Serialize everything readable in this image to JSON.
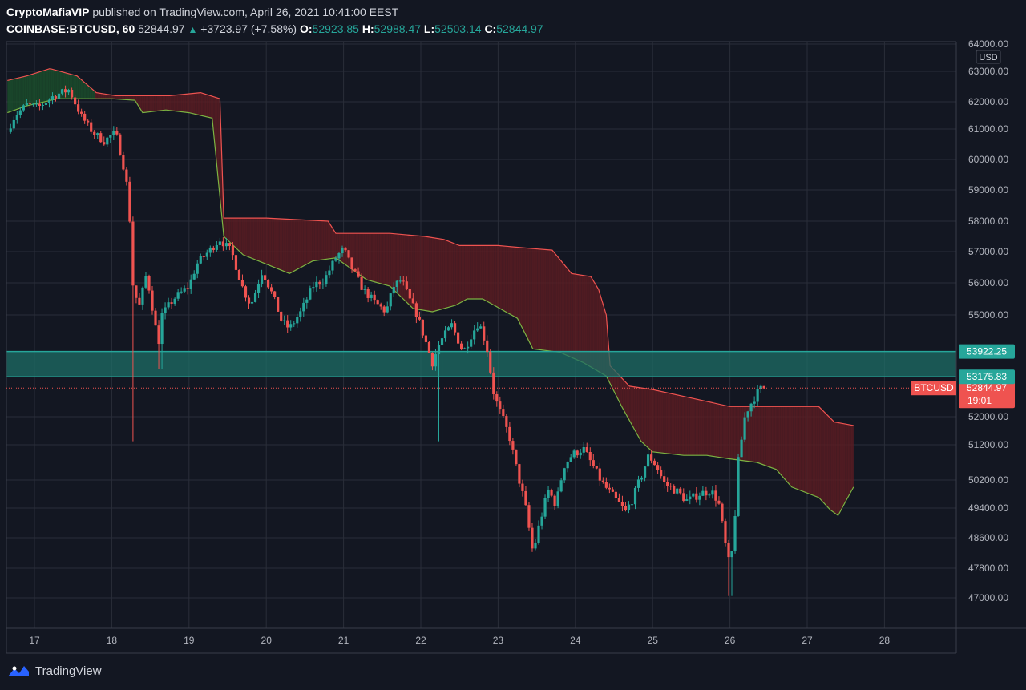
{
  "header": {
    "publisher": "CryptoMafiaVIP",
    "published_text": "published on TradingView.com, April 26, 2021 10:41:00 EEST",
    "symbol": "COINBASE:BTCUSD, 60",
    "last": "52844.97",
    "change": "+3723.97 (+7.58%)",
    "o_label": "O:",
    "o_value": "52923.85",
    "h_label": "H:",
    "h_value": "52988.47",
    "l_label": "L:",
    "l_value": "52503.14",
    "c_label": "C:",
    "c_value": "52844.97"
  },
  "footer": {
    "brand": "TradingView"
  },
  "colors": {
    "background": "#131722",
    "grid": "#2a2e39",
    "up": "#26a69a",
    "down": "#ef5350",
    "zone": "#1e6e66",
    "zone_label": "#26a69a",
    "cloud_red": "#5a1c22",
    "cloud_green": "#1b4d2b"
  },
  "chart_data": {
    "type": "candlestick",
    "currency": "USD",
    "x_ticks": [
      "17",
      "18",
      "19",
      "20",
      "21",
      "22",
      "23",
      "24",
      "25",
      "26",
      "27",
      "28"
    ],
    "y_ticks": [
      "47000.00",
      "47800.00",
      "48600.00",
      "49400.00",
      "50200.00",
      "51200.00",
      "52000.00",
      "55000.00",
      "56000.00",
      "57000.00",
      "58000.00",
      "59000.00",
      "60000.00",
      "61000.00",
      "62000.00",
      "63000.00",
      "64000.00"
    ],
    "y_tick_values": [
      47000,
      47800,
      48600,
      49400,
      50200,
      51200,
      52000,
      55000,
      56000,
      57000,
      58000,
      59000,
      60000,
      61000,
      62000,
      63000,
      64000
    ],
    "ylim": [
      46700,
      64100
    ],
    "xlim": [
      16.65,
      28.95
    ],
    "zone": {
      "low": 53175.83,
      "high": 53922.25,
      "low_label": "53175.83",
      "high_label": "53922.25"
    },
    "last_price": {
      "symbol": "BTCUSD",
      "value": 52844.97,
      "label": "52844.97",
      "countdown": "19:01"
    },
    "price_path": [
      [
        16.65,
        60900
      ],
      [
        16.75,
        61500
      ],
      [
        16.9,
        61900
      ],
      [
        17.05,
        61800
      ],
      [
        17.25,
        62200
      ],
      [
        17.45,
        62400
      ],
      [
        17.6,
        61500
      ],
      [
        17.75,
        60900
      ],
      [
        17.9,
        60600
      ],
      [
        18.05,
        60900
      ],
      [
        18.15,
        59800
      ],
      [
        18.22,
        58800
      ],
      [
        18.27,
        56000
      ],
      [
        18.35,
        55200
      ],
      [
        18.45,
        56300
      ],
      [
        18.55,
        54900
      ],
      [
        18.6,
        54100
      ],
      [
        18.65,
        55000
      ],
      [
        18.8,
        55500
      ],
      [
        19.0,
        55900
      ],
      [
        19.1,
        56600
      ],
      [
        19.25,
        57000
      ],
      [
        19.4,
        57400
      ],
      [
        19.55,
        57000
      ],
      [
        19.7,
        55800
      ],
      [
        19.8,
        55300
      ],
      [
        19.95,
        56400
      ],
      [
        20.1,
        55500
      ],
      [
        20.2,
        54800
      ],
      [
        20.3,
        54600
      ],
      [
        20.45,
        55100
      ],
      [
        20.6,
        55900
      ],
      [
        20.75,
        56100
      ],
      [
        20.9,
        56800
      ],
      [
        21.0,
        57100
      ],
      [
        21.1,
        56500
      ],
      [
        21.25,
        55800
      ],
      [
        21.4,
        55400
      ],
      [
        21.55,
        55100
      ],
      [
        21.65,
        55900
      ],
      [
        21.75,
        56100
      ],
      [
        21.85,
        55500
      ],
      [
        21.95,
        55000
      ],
      [
        22.05,
        54300
      ],
      [
        22.15,
        53600
      ],
      [
        22.25,
        54200
      ],
      [
        22.4,
        54700
      ],
      [
        22.55,
        53900
      ],
      [
        22.65,
        54400
      ],
      [
        22.75,
        54800
      ],
      [
        22.85,
        54100
      ],
      [
        22.95,
        52600
      ],
      [
        23.05,
        52000
      ],
      [
        23.15,
        51400
      ],
      [
        23.25,
        50400
      ],
      [
        23.35,
        49500
      ],
      [
        23.45,
        48200
      ],
      [
        23.55,
        49100
      ],
      [
        23.65,
        49900
      ],
      [
        23.75,
        49500
      ],
      [
        23.85,
        50600
      ],
      [
        23.95,
        50900
      ],
      [
        24.1,
        51100
      ],
      [
        24.2,
        50700
      ],
      [
        24.35,
        50100
      ],
      [
        24.5,
        49700
      ],
      [
        24.65,
        49300
      ],
      [
        24.75,
        49700
      ],
      [
        24.85,
        50300
      ],
      [
        24.95,
        50900
      ],
      [
        25.05,
        50600
      ],
      [
        25.15,
        50100
      ],
      [
        25.3,
        49900
      ],
      [
        25.45,
        49600
      ],
      [
        25.6,
        49800
      ],
      [
        25.75,
        49900
      ],
      [
        25.85,
        49600
      ],
      [
        25.95,
        48300
      ],
      [
        26.0,
        47800
      ],
      [
        26.05,
        48600
      ],
      [
        26.1,
        50600
      ],
      [
        26.2,
        52100
      ],
      [
        26.3,
        52500
      ],
      [
        26.38,
        52800
      ],
      [
        26.44,
        52845
      ]
    ],
    "cloud_upper": [
      [
        16.65,
        62700
      ],
      [
        16.9,
        62850
      ],
      [
        17.2,
        63100
      ],
      [
        17.55,
        62850
      ],
      [
        17.8,
        62300
      ],
      [
        18.05,
        62200
      ],
      [
        18.3,
        62200
      ],
      [
        18.75,
        62200
      ],
      [
        19.15,
        62300
      ],
      [
        19.4,
        62100
      ],
      [
        19.45,
        58100
      ],
      [
        20.0,
        58100
      ],
      [
        20.8,
        58000
      ],
      [
        20.9,
        57600
      ],
      [
        21.6,
        57600
      ],
      [
        22.05,
        57500
      ],
      [
        22.3,
        57400
      ],
      [
        22.5,
        57200
      ],
      [
        23.0,
        57200
      ],
      [
        23.45,
        57100
      ],
      [
        23.7,
        57050
      ],
      [
        23.95,
        56300
      ],
      [
        24.2,
        56200
      ],
      [
        24.3,
        55800
      ],
      [
        24.4,
        55000
      ],
      [
        24.45,
        53500
      ],
      [
        24.7,
        52900
      ],
      [
        25.0,
        52800
      ],
      [
        25.5,
        52550
      ],
      [
        26.0,
        52300
      ],
      [
        26.4,
        52300
      ],
      [
        27.15,
        52300
      ],
      [
        27.35,
        51850
      ],
      [
        27.6,
        51750
      ]
    ],
    "cloud_lower": [
      [
        16.65,
        61600
      ],
      [
        16.9,
        61850
      ],
      [
        17.3,
        62100
      ],
      [
        17.7,
        62100
      ],
      [
        18.0,
        62100
      ],
      [
        18.3,
        62050
      ],
      [
        18.4,
        61600
      ],
      [
        18.7,
        61700
      ],
      [
        19.0,
        61600
      ],
      [
        19.3,
        61400
      ],
      [
        19.45,
        57500
      ],
      [
        19.7,
        56900
      ],
      [
        20.0,
        56600
      ],
      [
        20.3,
        56300
      ],
      [
        20.6,
        56700
      ],
      [
        20.9,
        56800
      ],
      [
        21.3,
        56100
      ],
      [
        21.6,
        55900
      ],
      [
        21.9,
        55200
      ],
      [
        22.15,
        55100
      ],
      [
        22.45,
        55300
      ],
      [
        22.6,
        55500
      ],
      [
        22.8,
        55500
      ],
      [
        22.95,
        55300
      ],
      [
        23.25,
        54900
      ],
      [
        23.45,
        54000
      ],
      [
        23.8,
        53900
      ],
      [
        24.1,
        53600
      ],
      [
        24.4,
        53200
      ],
      [
        24.6,
        52300
      ],
      [
        24.85,
        51300
      ],
      [
        25.0,
        51000
      ],
      [
        25.4,
        50900
      ],
      [
        25.7,
        50900
      ],
      [
        26.0,
        50800
      ],
      [
        26.35,
        50700
      ],
      [
        26.6,
        50500
      ],
      [
        26.8,
        50000
      ],
      [
        27.15,
        49700
      ],
      [
        27.3,
        49350
      ],
      [
        27.4,
        49200
      ],
      [
        27.5,
        49600
      ],
      [
        27.6,
        50000
      ]
    ]
  }
}
